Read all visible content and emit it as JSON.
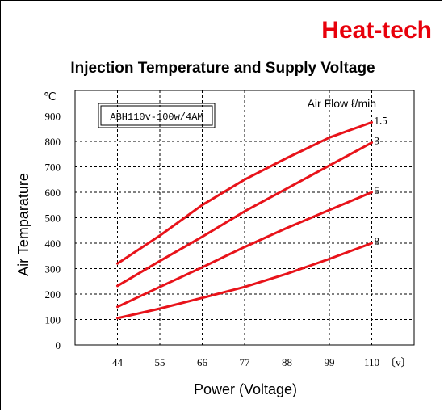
{
  "brand": {
    "text": "Heat-tech",
    "color": "#e8000b"
  },
  "chart_data": {
    "type": "line",
    "title": "Injection Temperature and Supply Voltage",
    "xlabel": "Power (Voltage)",
    "ylabel": "Air Temparature",
    "y_unit": "℃",
    "x_unit": "〔v〕",
    "model_box": "ABH110v-100w/4AM",
    "legend_title": "Air Flow ℓ/min",
    "x": [
      44,
      55,
      66,
      77,
      88,
      99,
      110
    ],
    "x_tick_labels": [
      "44",
      "55",
      "66",
      "77",
      "88",
      "99",
      "110"
    ],
    "y_ticks": [
      0,
      100,
      200,
      300,
      400,
      500,
      600,
      700,
      800,
      900
    ],
    "y_tick_labels": [
      "0",
      "100",
      "200",
      "300",
      "400",
      "500",
      "600",
      "700",
      "800",
      "900"
    ],
    "xlim": [
      33,
      121
    ],
    "ylim": [
      0,
      1000
    ],
    "grid": true,
    "line_color": "#e8131a",
    "series": [
      {
        "name": "1.5",
        "values": [
          320,
          430,
          550,
          650,
          735,
          815,
          875
        ]
      },
      {
        "name": "3",
        "values": [
          232,
          330,
          425,
          525,
          615,
          705,
          795
        ]
      },
      {
        "name": "5",
        "values": [
          150,
          228,
          305,
          385,
          460,
          530,
          600
        ]
      },
      {
        "name": "8",
        "values": [
          105,
          143,
          185,
          228,
          280,
          338,
          400
        ]
      }
    ]
  }
}
